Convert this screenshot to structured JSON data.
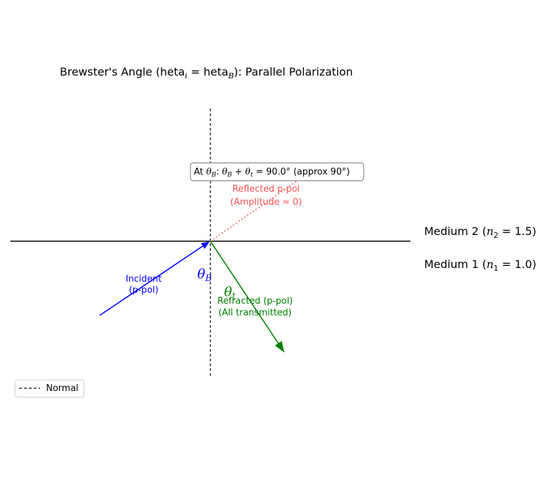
{
  "diagram": {
    "title": "Brewster's Angle ($\\theta_i = \\theta_B$): Parallel Polarization",
    "title_display": "Brewster's Angle (heta",
    "title_sub_i": "i",
    "title_eq": " = heta",
    "title_sub_B": "B",
    "title_end": "): Parallel Polarization",
    "medium2": {
      "prefix": "Medium 2 (",
      "n": "n",
      "sub": "2",
      "value": " = 1.5)"
    },
    "medium1": {
      "prefix": "Medium 1 (",
      "n": "n",
      "sub": "1",
      "value": " = 1.0)"
    },
    "incident_label": [
      "Incident",
      "(p-pol)"
    ],
    "reflected_label": [
      "Reflected p-pol",
      "(Amplitude ≈ 0)"
    ],
    "refracted_label": [
      "Refracted (p-pol)",
      "(All transmitted)"
    ],
    "theta_B": {
      "sym": "θ",
      "sub": "B"
    },
    "theta_t": {
      "sym": "θ",
      "sub": "t"
    },
    "annotation": {
      "prefix": "At ",
      "sym1": "θ",
      "sub1": "B",
      "colon": ": ",
      "sym2": "θ",
      "sub2": "B",
      "plus": " + ",
      "sym3": "θ",
      "sub3": "t",
      "rest": " = 90.0° (approx 90°)"
    },
    "legend": {
      "label": "Normal"
    },
    "colors": {
      "incident": "#0000ff",
      "reflected": "#f08080",
      "refracted": "#008000",
      "interface": "#000000",
      "normal": "#000000"
    }
  }
}
